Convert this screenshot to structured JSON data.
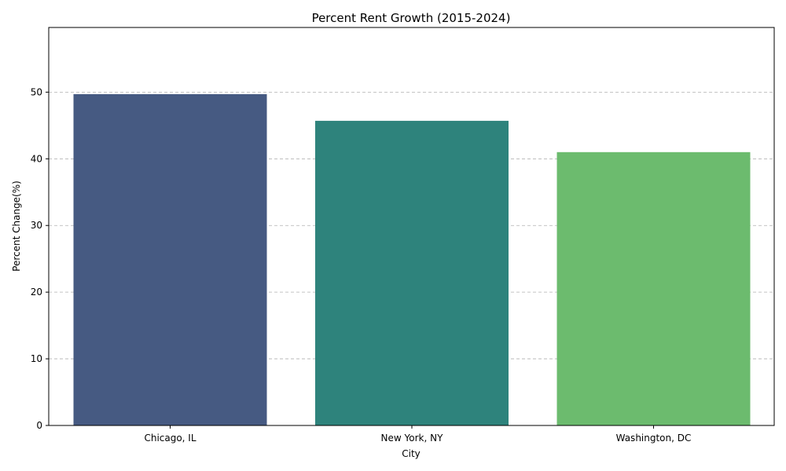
{
  "chart_data": {
    "type": "bar",
    "title": "Percent Rent Growth (2015-2024)",
    "xlabel": "City",
    "ylabel": "Percent Change(%)",
    "categories": [
      "Chicago, IL",
      "New York, NY",
      "Washington, DC"
    ],
    "values": [
      49.7,
      45.7,
      41.0
    ],
    "colors": [
      "#465a82",
      "#2e837c",
      "#6cbb6e"
    ],
    "ylim": [
      0,
      59.7
    ],
    "yticks": [
      0,
      10,
      20,
      30,
      40,
      50
    ],
    "grid": "y-dashed",
    "legend": "none"
  }
}
